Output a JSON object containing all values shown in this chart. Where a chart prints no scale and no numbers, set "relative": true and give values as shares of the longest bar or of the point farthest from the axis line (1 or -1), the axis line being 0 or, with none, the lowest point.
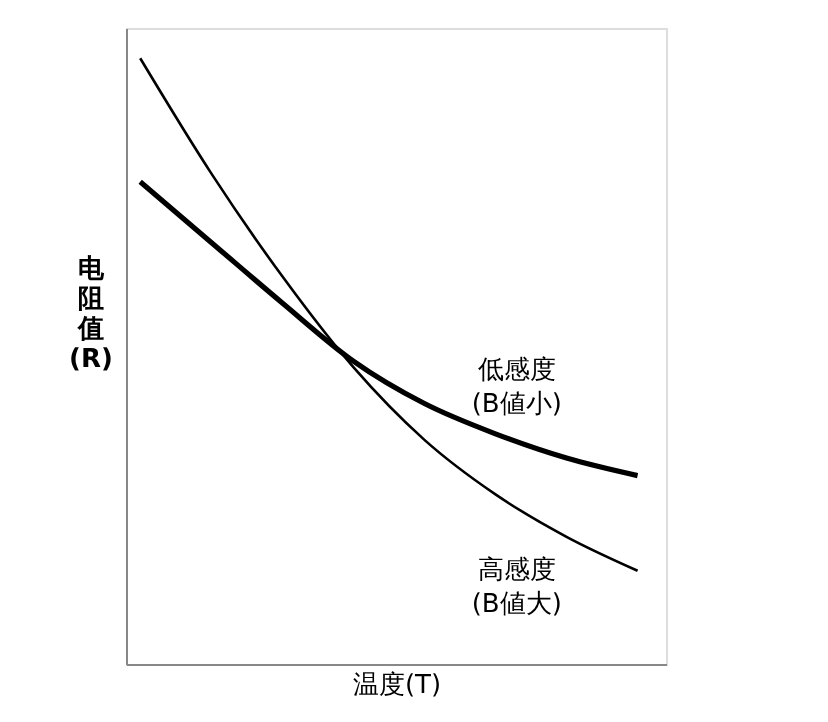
{
  "chart_data": {
    "type": "line",
    "xlabel": "温度(T)",
    "ylabel": "电阻值(R)",
    "relative": true,
    "categories": [
      null,
      null,
      null,
      null,
      null,
      null,
      null,
      null
    ],
    "series": [
      {
        "name": "低感度\n(B値小)",
        "color": "#000000",
        "values": [
          0.796,
          0.696,
          0.596,
          0.5,
          0.43,
          0.38,
          0.34,
          0.311
        ]
      },
      {
        "name": "高感度\n(B値大)",
        "color": "#000000",
        "values": [
          1,
          0.81,
          0.64,
          0.49,
          0.37,
          0.28,
          0.21,
          0.154
        ]
      }
    ]
  }
}
